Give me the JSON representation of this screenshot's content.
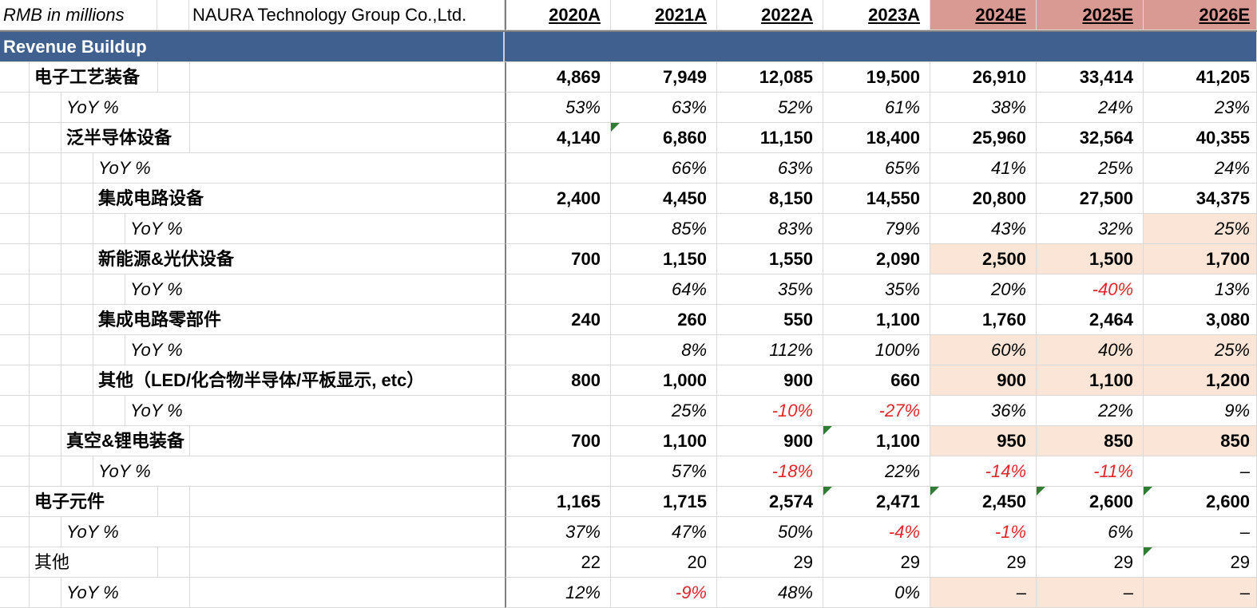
{
  "header": {
    "units": "RMB in millions",
    "company": "NAURA Technology Group Co.,Ltd.",
    "years": [
      "2020A",
      "2021A",
      "2022A",
      "2023A",
      "2024E",
      "2025E",
      "2026E"
    ]
  },
  "section_title": "Revenue Buildup",
  "colors": {
    "section_bg": "#40608f",
    "estimate_header": "#d99a94",
    "highlight": "#fbe5d6",
    "negative": "#e0262a",
    "comment_marker": "#2e7d32"
  },
  "rows": [
    {
      "label": "电子工艺装备",
      "level": 1,
      "type": "value",
      "values": [
        "4,869",
        "7,949",
        "12,085",
        "19,500",
        "26,910",
        "33,414",
        "41,205"
      ]
    },
    {
      "label": "YoY %",
      "level": 2,
      "type": "yoy",
      "values": [
        "53%",
        "63%",
        "52%",
        "61%",
        "38%",
        "24%",
        "23%"
      ]
    },
    {
      "label": "泛半导体设备",
      "level": 2,
      "type": "value",
      "values": [
        "4,140",
        "6,860",
        "11,150",
        "18,400",
        "25,960",
        "32,564",
        "40,355"
      ]
    },
    {
      "label": "YoY %",
      "level": 3,
      "type": "yoy",
      "values": [
        "",
        "66%",
        "63%",
        "65%",
        "41%",
        "25%",
        "24%"
      ]
    },
    {
      "label": "集成电路设备",
      "level": 3,
      "type": "value",
      "values": [
        "2,400",
        "4,450",
        "8,150",
        "14,550",
        "20,800",
        "27,500",
        "34,375"
      ]
    },
    {
      "label": "YoY %",
      "level": 4,
      "type": "yoy",
      "values": [
        "",
        "85%",
        "83%",
        "79%",
        "43%",
        "32%",
        "25%"
      ]
    },
    {
      "label": "新能源&光伏设备",
      "level": 3,
      "type": "value",
      "values": [
        "700",
        "1,150",
        "1,550",
        "2,090",
        "2,500",
        "1,500",
        "1,700"
      ]
    },
    {
      "label": "YoY %",
      "level": 4,
      "type": "yoy",
      "values": [
        "",
        "64%",
        "35%",
        "35%",
        "20%",
        "-40%",
        "13%"
      ]
    },
    {
      "label": "集成电路零部件",
      "level": 3,
      "type": "value",
      "values": [
        "240",
        "260",
        "550",
        "1,100",
        "1,760",
        "2,464",
        "3,080"
      ]
    },
    {
      "label": "YoY %",
      "level": 4,
      "type": "yoy",
      "values": [
        "",
        "8%",
        "112%",
        "100%",
        "60%",
        "40%",
        "25%"
      ]
    },
    {
      "label": "其他（LED/化合物半导体/平板显示, etc）",
      "level": 3,
      "type": "value",
      "values": [
        "800",
        "1,000",
        "900",
        "660",
        "900",
        "1,100",
        "1,200"
      ]
    },
    {
      "label": "YoY %",
      "level": 4,
      "type": "yoy",
      "values": [
        "",
        "25%",
        "-10%",
        "-27%",
        "36%",
        "22%",
        "9%"
      ]
    },
    {
      "label": "真空&锂电装备",
      "level": 2,
      "type": "value",
      "values": [
        "700",
        "1,100",
        "900",
        "1,100",
        "950",
        "850",
        "850"
      ]
    },
    {
      "label": "YoY %",
      "level": 3,
      "type": "yoy",
      "values": [
        "",
        "57%",
        "-18%",
        "22%",
        "-14%",
        "-11%",
        "–"
      ]
    },
    {
      "label": "电子元件",
      "level": 1,
      "type": "value",
      "values": [
        "1,165",
        "1,715",
        "2,574",
        "2,471",
        "2,450",
        "2,600",
        "2,600"
      ]
    },
    {
      "label": "YoY %",
      "level": 2,
      "type": "yoy",
      "values": [
        "37%",
        "47%",
        "50%",
        "-4%",
        "-1%",
        "6%",
        "–"
      ]
    },
    {
      "label": "其他",
      "level": 1,
      "type": "plain",
      "values": [
        "22",
        "20",
        "29",
        "29",
        "29",
        "29",
        "29"
      ]
    },
    {
      "label": "YoY %",
      "level": 2,
      "type": "yoy",
      "values": [
        "12%",
        "-9%",
        "48%",
        "0%",
        "–",
        "–",
        "–"
      ]
    }
  ]
}
